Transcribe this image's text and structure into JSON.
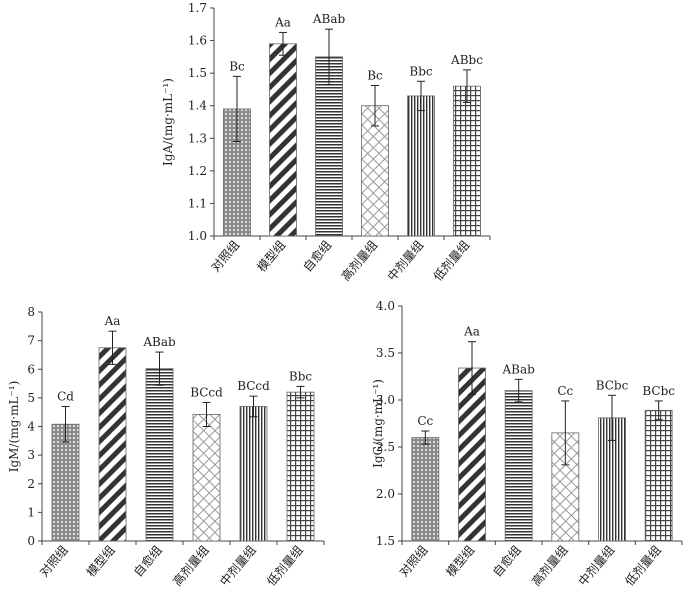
{
  "chart_data": [
    {
      "type": "bar",
      "id": "iga",
      "ylabel": "IgA/(mg·mL⁻¹)",
      "ylim": [
        1.0,
        1.7
      ],
      "yticks": [
        "1.0",
        "1.1",
        "1.2",
        "1.3",
        "1.4",
        "1.5",
        "1.6",
        "1.7"
      ],
      "categories": [
        "对照组",
        "模型组",
        "自愈组",
        "高剂量组",
        "中剂量组",
        "低剂量组"
      ],
      "values": [
        1.39,
        1.59,
        1.55,
        1.4,
        1.43,
        1.46
      ],
      "errors": [
        0.1,
        0.035,
        0.085,
        0.062,
        0.045,
        0.05
      ],
      "letters": [
        "Bc",
        "Aa",
        "ABab",
        "Bc",
        "Bbc",
        "ABbc"
      ]
    },
    {
      "type": "bar",
      "id": "igm",
      "ylabel": "IgM/(mg·mL⁻¹)",
      "ylim": [
        0,
        8
      ],
      "yticks": [
        "0",
        "1",
        "2",
        "3",
        "4",
        "5",
        "6",
        "7",
        "8"
      ],
      "categories": [
        "对照组",
        "模型组",
        "自愈组",
        "高剂量组",
        "中剂量组",
        "低剂量组"
      ],
      "values": [
        4.08,
        6.75,
        6.02,
        4.42,
        4.7,
        5.2
      ],
      "errors": [
        0.62,
        0.58,
        0.58,
        0.42,
        0.36,
        0.2
      ],
      "letters": [
        "Cd",
        "Aa",
        "ABab",
        "BCcd",
        "BCcd",
        "Bbc"
      ]
    },
    {
      "type": "bar",
      "id": "igg",
      "ylabel": "IgG/(mg·mL⁻¹)",
      "ylim": [
        1.5,
        4.0
      ],
      "yticks": [
        "1.5",
        "2.0",
        "2.5",
        "3.0",
        "3.5",
        "4.0"
      ],
      "categories": [
        "对照组",
        "模型组",
        "自愈组",
        "高剂量组",
        "中剂量组",
        "低剂量组"
      ],
      "values": [
        2.6,
        3.34,
        3.1,
        2.65,
        2.81,
        2.89
      ],
      "errors": [
        0.07,
        0.28,
        0.12,
        0.34,
        0.24,
        0.1
      ],
      "letters": [
        "Cc",
        "Aa",
        "ABab",
        "Cc",
        "BCbc",
        "BCbc"
      ]
    }
  ]
}
